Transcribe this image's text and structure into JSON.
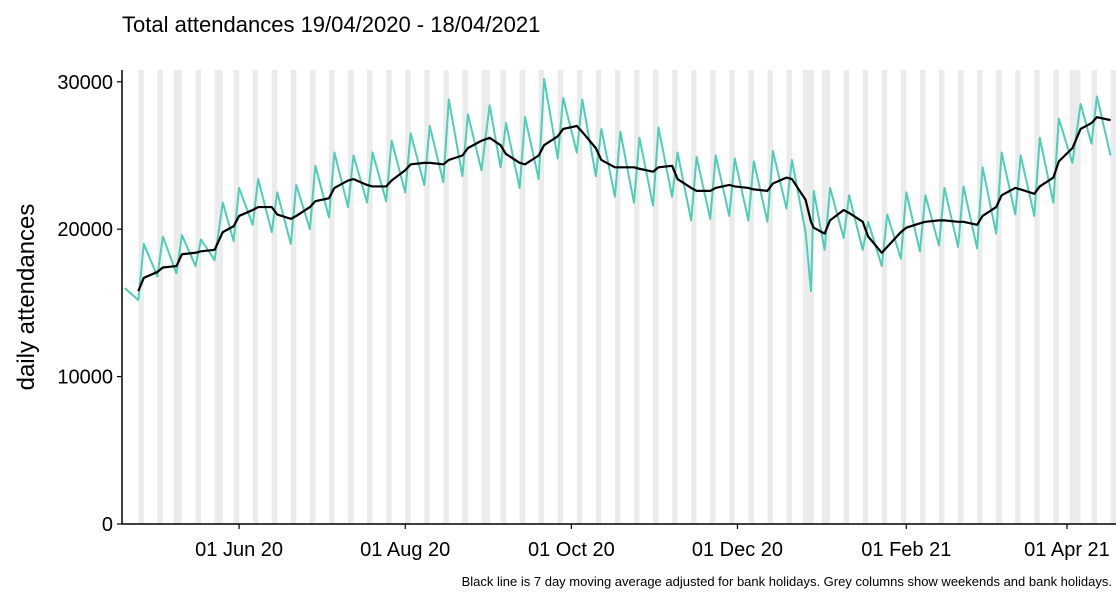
{
  "chart_data": {
    "type": "line",
    "title": "Total attendances 19/04/2020 - 18/04/2021",
    "y_label": "daily attendances",
    "footnote": "Black line is 7 day moving average adjusted for bank holidays. Grey columns show weekends and bank holidays.",
    "xlim": [
      "2020-04-19",
      "2021-04-19"
    ],
    "xticks": [
      {
        "value": "2020-06-01",
        "label": "01 Jun 20"
      },
      {
        "value": "2020-08-01",
        "label": "01 Aug 20"
      },
      {
        "value": "2020-10-01",
        "label": "01 Oct 20"
      },
      {
        "value": "2020-12-01",
        "label": "01 Dec 20"
      },
      {
        "value": "2021-02-01",
        "label": "01 Feb 21"
      },
      {
        "value": "2021-04-01",
        "label": "01 Apr 21"
      }
    ],
    "ylim": [
      0,
      30800
    ],
    "yticks": [
      0,
      10000,
      20000,
      30000
    ],
    "grid": false,
    "shade_color": "#ebebeb",
    "weekends": [
      "2020-04-25",
      "2020-05-02",
      "2020-05-09",
      "2020-05-16",
      "2020-05-23",
      "2020-05-30",
      "2020-06-06",
      "2020-06-13",
      "2020-06-20",
      "2020-06-27",
      "2020-07-04",
      "2020-07-11",
      "2020-07-18",
      "2020-07-25",
      "2020-08-01",
      "2020-08-08",
      "2020-08-15",
      "2020-08-22",
      "2020-08-29",
      "2020-09-05",
      "2020-09-12",
      "2020-09-19",
      "2020-09-26",
      "2020-10-03",
      "2020-10-10",
      "2020-10-17",
      "2020-10-24",
      "2020-10-31",
      "2020-11-07",
      "2020-11-14",
      "2020-11-21",
      "2020-11-28",
      "2020-12-05",
      "2020-12-12",
      "2020-12-19",
      "2020-12-26",
      "2021-01-02",
      "2021-01-09",
      "2021-01-16",
      "2021-01-23",
      "2021-01-30",
      "2021-02-06",
      "2021-02-13",
      "2021-02-20",
      "2021-02-27",
      "2021-03-06",
      "2021-03-13",
      "2021-03-20",
      "2021-03-27",
      "2021-04-03",
      "2021-04-10",
      "2021-04-17"
    ],
    "bank_holidays": [
      "2020-05-08",
      "2020-05-25",
      "2020-08-31",
      "2020-12-25",
      "2020-12-28",
      "2021-01-01",
      "2021-04-02",
      "2021-04-05"
    ],
    "x": [
      "2020-04-20",
      "2020-04-25",
      "2020-04-27",
      "2020-05-02",
      "2020-05-04",
      "2020-05-09",
      "2020-05-11",
      "2020-05-16",
      "2020-05-18",
      "2020-05-23",
      "2020-05-26",
      "2020-05-30",
      "2020-06-01",
      "2020-06-06",
      "2020-06-08",
      "2020-06-13",
      "2020-06-15",
      "2020-06-20",
      "2020-06-22",
      "2020-06-27",
      "2020-06-29",
      "2020-07-04",
      "2020-07-06",
      "2020-07-11",
      "2020-07-13",
      "2020-07-18",
      "2020-07-20",
      "2020-07-25",
      "2020-07-27",
      "2020-08-01",
      "2020-08-03",
      "2020-08-08",
      "2020-08-10",
      "2020-08-15",
      "2020-08-17",
      "2020-08-22",
      "2020-08-24",
      "2020-08-29",
      "2020-09-01",
      "2020-09-05",
      "2020-09-07",
      "2020-09-12",
      "2020-09-14",
      "2020-09-19",
      "2020-09-21",
      "2020-09-26",
      "2020-09-28",
      "2020-10-03",
      "2020-10-05",
      "2020-10-10",
      "2020-10-12",
      "2020-10-17",
      "2020-10-19",
      "2020-10-24",
      "2020-10-26",
      "2020-10-31",
      "2020-11-02",
      "2020-11-07",
      "2020-11-09",
      "2020-11-14",
      "2020-11-16",
      "2020-11-21",
      "2020-11-23",
      "2020-11-28",
      "2020-11-30",
      "2020-12-05",
      "2020-12-07",
      "2020-12-12",
      "2020-12-14",
      "2020-12-19",
      "2020-12-21",
      "2020-12-26",
      "2020-12-28",
      "2020-12-29",
      "2021-01-02",
      "2021-01-04",
      "2021-01-09",
      "2021-01-11",
      "2021-01-16",
      "2021-01-18",
      "2021-01-23",
      "2021-01-25",
      "2021-01-30",
      "2021-02-01",
      "2021-02-06",
      "2021-02-08",
      "2021-02-13",
      "2021-02-15",
      "2021-02-20",
      "2021-02-22",
      "2021-02-27",
      "2021-03-01",
      "2021-03-06",
      "2021-03-08",
      "2021-03-13",
      "2021-03-15",
      "2021-03-20",
      "2021-03-22",
      "2021-03-27",
      "2021-03-29",
      "2021-04-03",
      "2021-04-06",
      "2021-04-10",
      "2021-04-12",
      "2021-04-17"
    ],
    "series": [
      {
        "color": "#4ecdb8",
        "values": [
          16000,
          15200,
          19000,
          16800,
          19500,
          17000,
          19600,
          17500,
          19300,
          17900,
          21800,
          19200,
          22800,
          20300,
          23400,
          19800,
          22500,
          19000,
          23000,
          20000,
          24300,
          20800,
          25200,
          21500,
          25000,
          21800,
          25200,
          21900,
          26000,
          22500,
          26500,
          23000,
          27000,
          23200,
          28800,
          23600,
          27800,
          24000,
          28400,
          24200,
          27200,
          22800,
          27600,
          23400,
          30200,
          24800,
          28900,
          25200,
          28800,
          23600,
          26800,
          22200,
          26600,
          21800,
          26200,
          21600,
          26900,
          22200,
          25200,
          20600,
          24900,
          20700,
          25000,
          20900,
          24800,
          20600,
          24600,
          20500,
          25300,
          21400,
          24700,
          19800,
          15800,
          22600,
          18600,
          22800,
          19400,
          22300,
          18600,
          20500,
          17500,
          21000,
          18000,
          22500,
          18500,
          22300,
          18900,
          22800,
          18800,
          22900,
          18700,
          24200,
          19700,
          25200,
          21000,
          25000,
          20900,
          26200,
          21800,
          27500,
          24500,
          28500,
          25800,
          29000,
          25000
        ]
      },
      {
        "color": "#000000",
        "values": [
          null,
          15800,
          16700,
          17100,
          17400,
          17500,
          18300,
          18400,
          18500,
          18600,
          19800,
          20200,
          20900,
          21300,
          21500,
          21500,
          21000,
          20700,
          20900,
          21500,
          21900,
          22100,
          22800,
          23300,
          23400,
          23000,
          22900,
          22900,
          23300,
          24000,
          24400,
          24500,
          24500,
          24400,
          24700,
          25000,
          25500,
          26000,
          26200,
          25700,
          25100,
          24500,
          24400,
          25000,
          25700,
          26300,
          26800,
          27000,
          26600,
          25500,
          24700,
          24200,
          24200,
          24200,
          24100,
          23900,
          24200,
          24300,
          23400,
          22800,
          22600,
          22600,
          22800,
          23000,
          22900,
          22800,
          22700,
          22600,
          23100,
          23500,
          23400,
          22000,
          20500,
          20100,
          19700,
          20600,
          21300,
          21100,
          20500,
          19500,
          18400,
          18800,
          19800,
          20100,
          20400,
          20500,
          20600,
          20600,
          20500,
          20500,
          20300,
          20900,
          21500,
          22300,
          22800,
          22700,
          22400,
          22900,
          23500,
          24600,
          25500,
          26800,
          27200,
          27600,
          27400
        ]
      }
    ]
  }
}
